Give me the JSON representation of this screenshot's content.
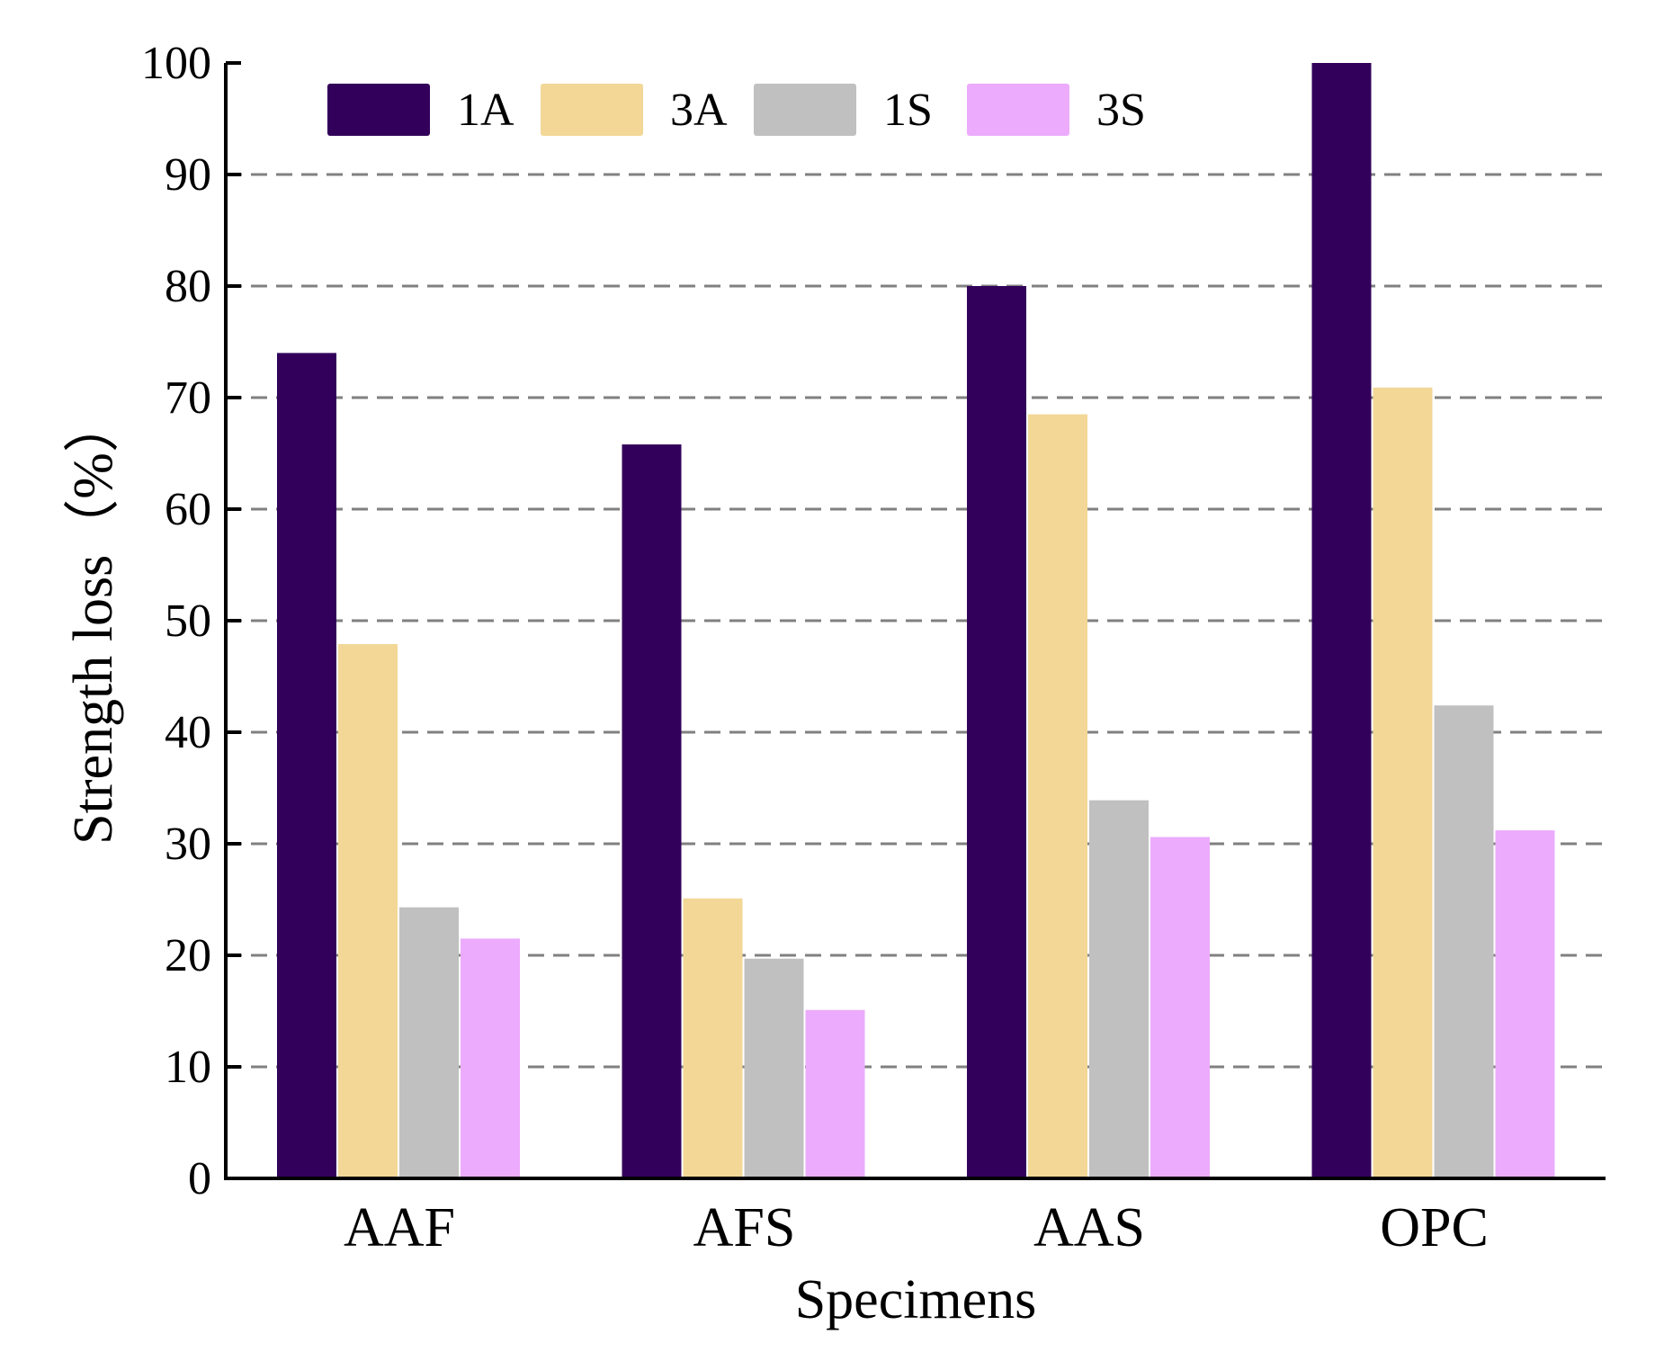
{
  "chart_data": {
    "type": "bar",
    "title": "",
    "xlabel": "Specimens",
    "ylabel": "Strength loss（%）",
    "ylim": [
      0,
      100
    ],
    "yticks": [
      0,
      10,
      20,
      30,
      40,
      50,
      60,
      70,
      80,
      90,
      100
    ],
    "grid": true,
    "legend_position": "top",
    "categories": [
      "AAF",
      "AFS",
      "AAS",
      "OPC"
    ],
    "series": [
      {
        "name": "1A",
        "color": "#32005a",
        "values": [
          74,
          65.8,
          80,
          100
        ]
      },
      {
        "name": "3A",
        "color": "#f2d797",
        "values": [
          47.9,
          25.1,
          68.5,
          70.9
        ]
      },
      {
        "name": "1S",
        "color": "#c0c0c0",
        "values": [
          24.3,
          19.7,
          33.9,
          42.4
        ]
      },
      {
        "name": "3S",
        "color": "#ecabfc",
        "values": [
          21.5,
          15.1,
          30.6,
          31.2
        ]
      }
    ]
  }
}
